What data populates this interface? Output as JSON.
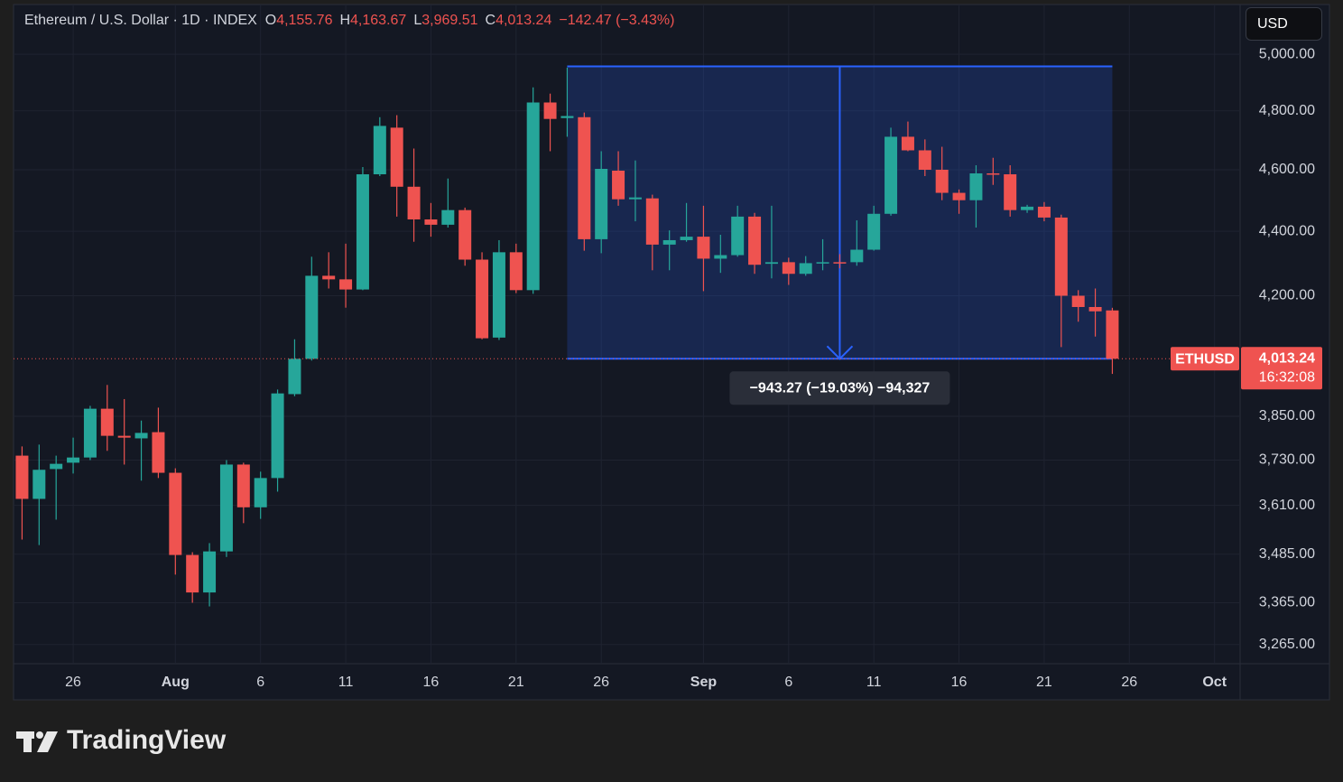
{
  "chart_data": {
    "type": "candlestick",
    "title": "Ethereum / U.S. Dollar · 1D · INDEX",
    "ohlc_keys": [
      "O",
      "H",
      "L",
      "C"
    ],
    "ohlc_labels": [
      "4,155.76",
      "4,163.67",
      "3,969.51",
      "4,013.24"
    ],
    "change_label": "−142.47 (−3.43%)",
    "currency": "USD",
    "symbol": "ETHUSD",
    "last_price_label": "4,013.24",
    "countdown": "16:32:08",
    "up_color": "#26a69a",
    "down_color": "#ef5350",
    "log_scale": true,
    "grid": true,
    "categories": [
      "Jul 23",
      "Jul 24",
      "Jul 25",
      "Jul 26",
      "Jul 27",
      "Jul 28",
      "Jul 29",
      "Jul 30",
      "Jul 31",
      "Aug 1",
      "Aug 2",
      "Aug 3",
      "Aug 4",
      "Aug 5",
      "Aug 6",
      "Aug 7",
      "Aug 8",
      "Aug 9",
      "Aug 10",
      "Aug 11",
      "Aug 12",
      "Aug 13",
      "Aug 14",
      "Aug 15",
      "Aug 16",
      "Aug 17",
      "Aug 18",
      "Aug 19",
      "Aug 20",
      "Aug 21",
      "Aug 22",
      "Aug 23",
      "Aug 24",
      "Aug 25",
      "Aug 26",
      "Aug 27",
      "Aug 28",
      "Aug 29",
      "Aug 30",
      "Aug 31",
      "Sep 1",
      "Sep 2",
      "Sep 3",
      "Sep 4",
      "Sep 5",
      "Sep 6",
      "Sep 7",
      "Sep 8",
      "Sep 9",
      "Sep 10",
      "Sep 11",
      "Sep 12",
      "Sep 13",
      "Sep 14",
      "Sep 15",
      "Sep 16",
      "Sep 17",
      "Sep 18",
      "Sep 19",
      "Sep 20",
      "Sep 21",
      "Sep 22",
      "Sep 23",
      "Sep 24",
      "Sep 25"
    ],
    "open": [
      3742,
      3627,
      3706,
      3723,
      3737,
      3871,
      3796,
      3789,
      3806,
      3696,
      3483,
      3390,
      3492,
      3718,
      3605,
      3682,
      3912,
      4013,
      4261,
      4250,
      4219,
      4585,
      4742,
      4544,
      4438,
      4421,
      4468,
      4311,
      4075,
      4334,
      4217,
      4829,
      4775,
      4778,
      4375,
      4597,
      4503,
      4506,
      4358,
      4372,
      4383,
      4314,
      4325,
      4447,
      4298,
      4303,
      4267,
      4300,
      4303,
      4303,
      4342,
      4456,
      4711,
      4665,
      4600,
      4524,
      4500,
      4588,
      4585,
      4468,
      4479,
      4444,
      4200,
      4166,
      4155.76
    ],
    "high": [
      3767,
      3772,
      3742,
      3791,
      3879,
      3938,
      3898,
      3838,
      3874,
      3708,
      3490,
      3513,
      3730,
      3723,
      3699,
      3925,
      4070,
      4320,
      4334,
      4361,
      4609,
      4778,
      4785,
      4671,
      4491,
      4571,
      4476,
      4334,
      4372,
      4361,
      4882,
      4860,
      4952,
      4794,
      4662,
      4662,
      4631,
      4518,
      4403,
      4491,
      4482,
      4389,
      4482,
      4459,
      4482,
      4317,
      4322,
      4375,
      4328,
      4435,
      4482,
      4742,
      4763,
      4702,
      4677,
      4535,
      4615,
      4640,
      4615,
      4485,
      4494,
      4453,
      4217,
      4222,
      4163.67
    ],
    "low": [
      3522,
      3508,
      3573,
      3694,
      3730,
      3755,
      3718,
      3675,
      3682,
      3434,
      3365,
      3356,
      3478,
      3564,
      3575,
      3646,
      3906,
      4008,
      4222,
      4164,
      4217,
      4579,
      4447,
      4367,
      4383,
      4412,
      4292,
      4070,
      4068,
      4208,
      4206,
      4662,
      4711,
      4339,
      4331,
      4482,
      4432,
      4278,
      4278,
      4367,
      4214,
      4270,
      4320,
      4267,
      4253,
      4233,
      4261,
      4278,
      4284,
      4292,
      4339,
      4450,
      4662,
      4579,
      4500,
      4456,
      4412,
      4550,
      4447,
      4459,
      4432,
      4047,
      4122,
      4078,
      3969.51
    ],
    "close": [
      3627,
      3704,
      3720,
      3737,
      3871,
      3796,
      3791,
      3804,
      3696,
      3483,
      3390,
      3492,
      3718,
      3605,
      3682,
      3914,
      4013,
      4261,
      4250,
      4219,
      4585,
      4748,
      4544,
      4438,
      4421,
      4468,
      4311,
      4073,
      4334,
      4217,
      4829,
      4772,
      4782,
      4375,
      4603,
      4503,
      4509,
      4358,
      4372,
      4383,
      4314,
      4325,
      4447,
      4295,
      4303,
      4267,
      4300,
      4303,
      4300,
      4342,
      4456,
      4711,
      4665,
      4600,
      4524,
      4500,
      4588,
      4585,
      4468,
      4479,
      4444,
      4200,
      4166,
      4153,
      4013.24
    ],
    "xlim": [
      "Jul 23",
      "Oct 2"
    ],
    "xticks": [
      {
        "value": "Jul 26",
        "label": "26"
      },
      {
        "value": "Aug 1",
        "label": "Aug"
      },
      {
        "value": "Aug 6",
        "label": "6"
      },
      {
        "value": "Aug 11",
        "label": "11"
      },
      {
        "value": "Aug 16",
        "label": "16"
      },
      {
        "value": "Aug 21",
        "label": "21"
      },
      {
        "value": "Aug 26",
        "label": "26"
      },
      {
        "value": "Sep 1",
        "label": "Sep"
      },
      {
        "value": "Sep 6",
        "label": "6"
      },
      {
        "value": "Sep 11",
        "label": "11"
      },
      {
        "value": "Sep 16",
        "label": "16"
      },
      {
        "value": "Sep 21",
        "label": "21"
      },
      {
        "value": "Sep 26",
        "label": "26"
      },
      {
        "value": "Oct 1",
        "label": "Oct"
      }
    ],
    "ylim": [
      3220,
      5183
    ],
    "yticks": [
      {
        "value": 5000,
        "label": "5,000.00"
      },
      {
        "value": 4800,
        "label": "4,800.00"
      },
      {
        "value": 4600,
        "label": "4,600.00"
      },
      {
        "value": 4400,
        "label": "4,400.00"
      },
      {
        "value": 4200,
        "label": "4,200.00"
      },
      {
        "value": 3850,
        "label": "3,850.00"
      },
      {
        "value": 3730,
        "label": "3,730.00"
      },
      {
        "value": 3610,
        "label": "3,610.00"
      },
      {
        "value": 3485,
        "label": "3,485.00"
      },
      {
        "value": 3365,
        "label": "3,365.00"
      },
      {
        "value": 3265,
        "label": "3,265.00"
      }
    ],
    "measure": {
      "from": "Aug 24",
      "to": "Sep 25",
      "top": 4956.51,
      "bottom": 4013.24,
      "color": "#2962ff",
      "label": "−943.27 (−19.03%) −94,327"
    }
  },
  "brand": "TradingView"
}
